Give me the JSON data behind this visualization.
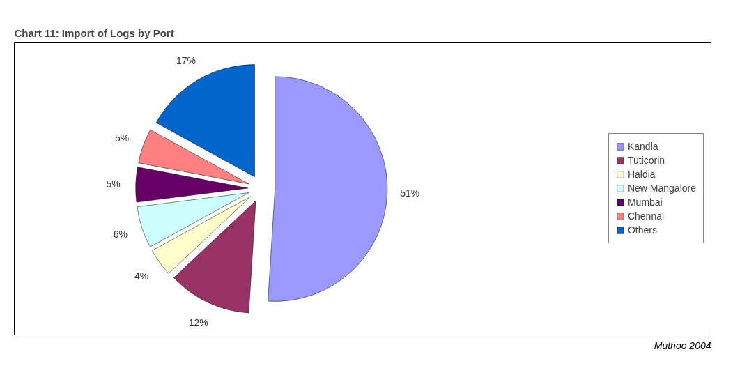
{
  "chart_data": {
    "type": "pie",
    "title": "Chart 11: Import of Logs by Port",
    "categories": [
      "Kandla",
      "Tuticorin",
      "Haldia",
      "New Mangalore",
      "Mumbai",
      "Chennai",
      "Others"
    ],
    "values": [
      51,
      12,
      4,
      6,
      5,
      5,
      17
    ],
    "colors": [
      "#9999ff",
      "#993366",
      "#ffffcc",
      "#ccffff",
      "#660066",
      "#ff8080",
      "#0066cc"
    ],
    "value_labels": [
      "51%",
      "12%",
      "4%",
      "6%",
      "5%",
      "5%",
      "17%"
    ],
    "legend": "right",
    "annotations": [
      "Muthoo 2004"
    ]
  }
}
